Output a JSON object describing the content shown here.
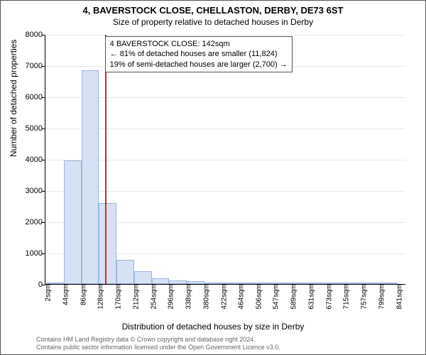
{
  "title_main": "4, BAVERSTOCK CLOSE, CHELLASTON, DERBY, DE73 6ST",
  "title_sub": "Size of property relative to detached houses in Derby",
  "y_axis_label": "Number of detached properties",
  "x_axis_label": "Distribution of detached houses by size in Derby",
  "footer_line1": "Contains HM Land Registry data © Crown copyright and database right 2024.",
  "footer_line2": "Contains public sector information licensed under the Open Government Licence v3.0.",
  "info_box": {
    "line1": "4 BAVERSTOCK CLOSE: 142sqm",
    "line2": "← 81% of detached houses are smaller (11,824)",
    "line3": "19% of semi-detached houses are larger (2,700) →"
  },
  "reference_value": 142,
  "chart": {
    "type": "histogram",
    "x_min": 0,
    "x_max": 862,
    "y_min": 0,
    "y_max": 8000,
    "y_ticks": [
      0,
      1000,
      2000,
      3000,
      4000,
      5000,
      6000,
      7000,
      8000
    ],
    "x_tick_labels": [
      "2sqm",
      "44sqm",
      "86sqm",
      "128sqm",
      "170sqm",
      "212sqm",
      "254sqm",
      "296sqm",
      "338sqm",
      "380sqm",
      "422sqm",
      "464sqm",
      "506sqm",
      "547sqm",
      "589sqm",
      "631sqm",
      "673sqm",
      "715sqm",
      "757sqm",
      "799sqm",
      "841sqm"
    ],
    "x_tick_positions": [
      2,
      44,
      86,
      128,
      170,
      212,
      254,
      296,
      338,
      380,
      422,
      464,
      506,
      547,
      589,
      631,
      673,
      715,
      757,
      799,
      841
    ],
    "bin_width": 42,
    "bins": [
      {
        "start": 2,
        "value": 30
      },
      {
        "start": 44,
        "value": 3950
      },
      {
        "start": 86,
        "value": 6850
      },
      {
        "start": 128,
        "value": 2600
      },
      {
        "start": 170,
        "value": 780
      },
      {
        "start": 212,
        "value": 400
      },
      {
        "start": 254,
        "value": 180
      },
      {
        "start": 296,
        "value": 120
      },
      {
        "start": 338,
        "value": 80
      },
      {
        "start": 380,
        "value": 55
      },
      {
        "start": 422,
        "value": 25
      },
      {
        "start": 464,
        "value": 10
      },
      {
        "start": 506,
        "value": 10
      },
      {
        "start": 547,
        "value": 5
      },
      {
        "start": 589,
        "value": 5
      },
      {
        "start": 631,
        "value": 5
      },
      {
        "start": 673,
        "value": 3
      },
      {
        "start": 715,
        "value": 3
      },
      {
        "start": 757,
        "value": 2
      },
      {
        "start": 799,
        "value": 2
      }
    ],
    "bar_fill": "#d6e2f3",
    "bar_stroke": "#9bb6e0",
    "reference_color": "#cc2b2b",
    "grid_color": "#e8e8e8",
    "background": "#ffffff"
  }
}
